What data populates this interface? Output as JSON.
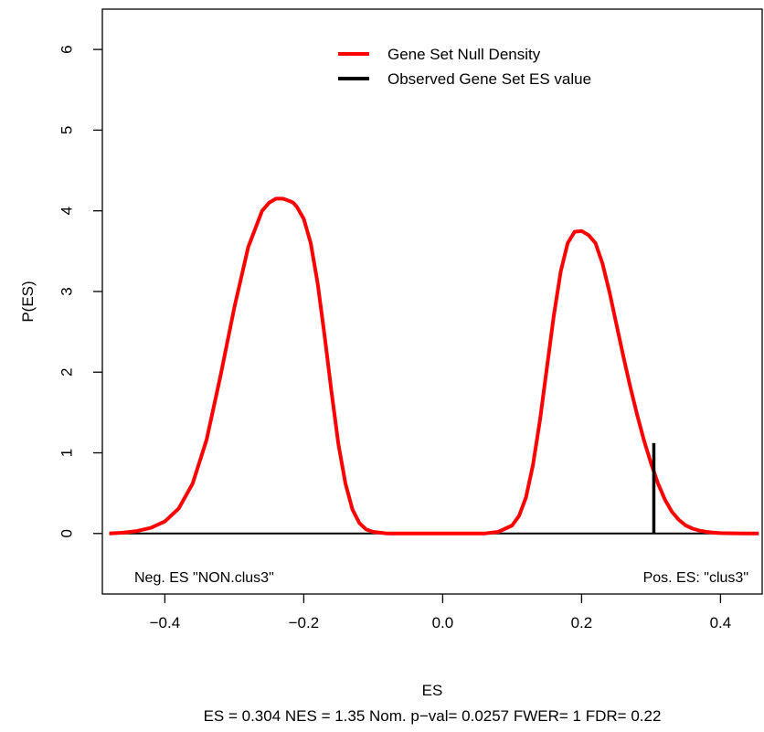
{
  "chart_data": {
    "type": "line",
    "xlabel": "ES",
    "ylabel": "P(ES)",
    "subtitle": "ES = 0.304  NES = 1.35 Nom. p−val= 0.0257 FWER= 1 FDR= 0.22",
    "xlim": [
      -0.49,
      0.46
    ],
    "ylim": [
      -0.75,
      6.5
    ],
    "x_ticks": [
      -0.4,
      -0.2,
      0.0,
      0.2,
      0.4
    ],
    "x_tick_labels": [
      "−0.4",
      "−0.2",
      "0.0",
      "0.2",
      "0.4"
    ],
    "y_ticks": [
      0,
      1,
      2,
      3,
      4,
      5,
      6
    ],
    "y_tick_labels": [
      "0",
      "1",
      "2",
      "3",
      "4",
      "5",
      "6"
    ],
    "grid": false,
    "legend_position": "top-right",
    "legend": [
      {
        "label": "Gene Set Null Density",
        "color": "#ff0000"
      },
      {
        "label": "Observed Gene Set ES value",
        "color": "#000000"
      }
    ],
    "series": [
      {
        "name": "Gene Set Null Density",
        "color": "#ff0000",
        "x": [
          -0.48,
          -0.46,
          -0.44,
          -0.42,
          -0.4,
          -0.38,
          -0.36,
          -0.34,
          -0.32,
          -0.3,
          -0.28,
          -0.26,
          -0.25,
          -0.24,
          -0.23,
          -0.22,
          -0.215,
          -0.21,
          -0.2,
          -0.19,
          -0.18,
          -0.17,
          -0.16,
          -0.15,
          -0.14,
          -0.13,
          -0.12,
          -0.11,
          -0.1,
          -0.09,
          -0.08,
          -0.06,
          -0.04,
          -0.02,
          0.0,
          0.02,
          0.04,
          0.06,
          0.08,
          0.1,
          0.11,
          0.12,
          0.13,
          0.14,
          0.15,
          0.16,
          0.17,
          0.18,
          0.19,
          0.2,
          0.21,
          0.22,
          0.23,
          0.24,
          0.25,
          0.26,
          0.27,
          0.28,
          0.29,
          0.3,
          0.31,
          0.32,
          0.33,
          0.34,
          0.35,
          0.36,
          0.37,
          0.38,
          0.39,
          0.4,
          0.42,
          0.44,
          0.455
        ],
        "y": [
          0.0,
          0.01,
          0.03,
          0.07,
          0.15,
          0.31,
          0.62,
          1.16,
          1.95,
          2.8,
          3.55,
          4.0,
          4.1,
          4.15,
          4.15,
          4.12,
          4.1,
          4.05,
          3.9,
          3.6,
          3.1,
          2.45,
          1.75,
          1.1,
          0.62,
          0.3,
          0.13,
          0.05,
          0.02,
          0.01,
          0.0,
          0.0,
          0.0,
          0.0,
          0.0,
          0.0,
          0.0,
          0.0,
          0.02,
          0.1,
          0.22,
          0.45,
          0.85,
          1.4,
          2.05,
          2.7,
          3.25,
          3.6,
          3.74,
          3.75,
          3.7,
          3.6,
          3.35,
          3.0,
          2.6,
          2.2,
          1.82,
          1.47,
          1.15,
          0.87,
          0.62,
          0.42,
          0.27,
          0.17,
          0.1,
          0.06,
          0.035,
          0.02,
          0.01,
          0.005,
          0.002,
          0.0,
          0.0
        ]
      }
    ],
    "observed_es": {
      "x": 0.304,
      "y_top": 1.12
    },
    "annotations": {
      "neg": "Neg. ES \"NON.clus3\"",
      "pos": "Pos. ES: \"clus3\""
    }
  }
}
